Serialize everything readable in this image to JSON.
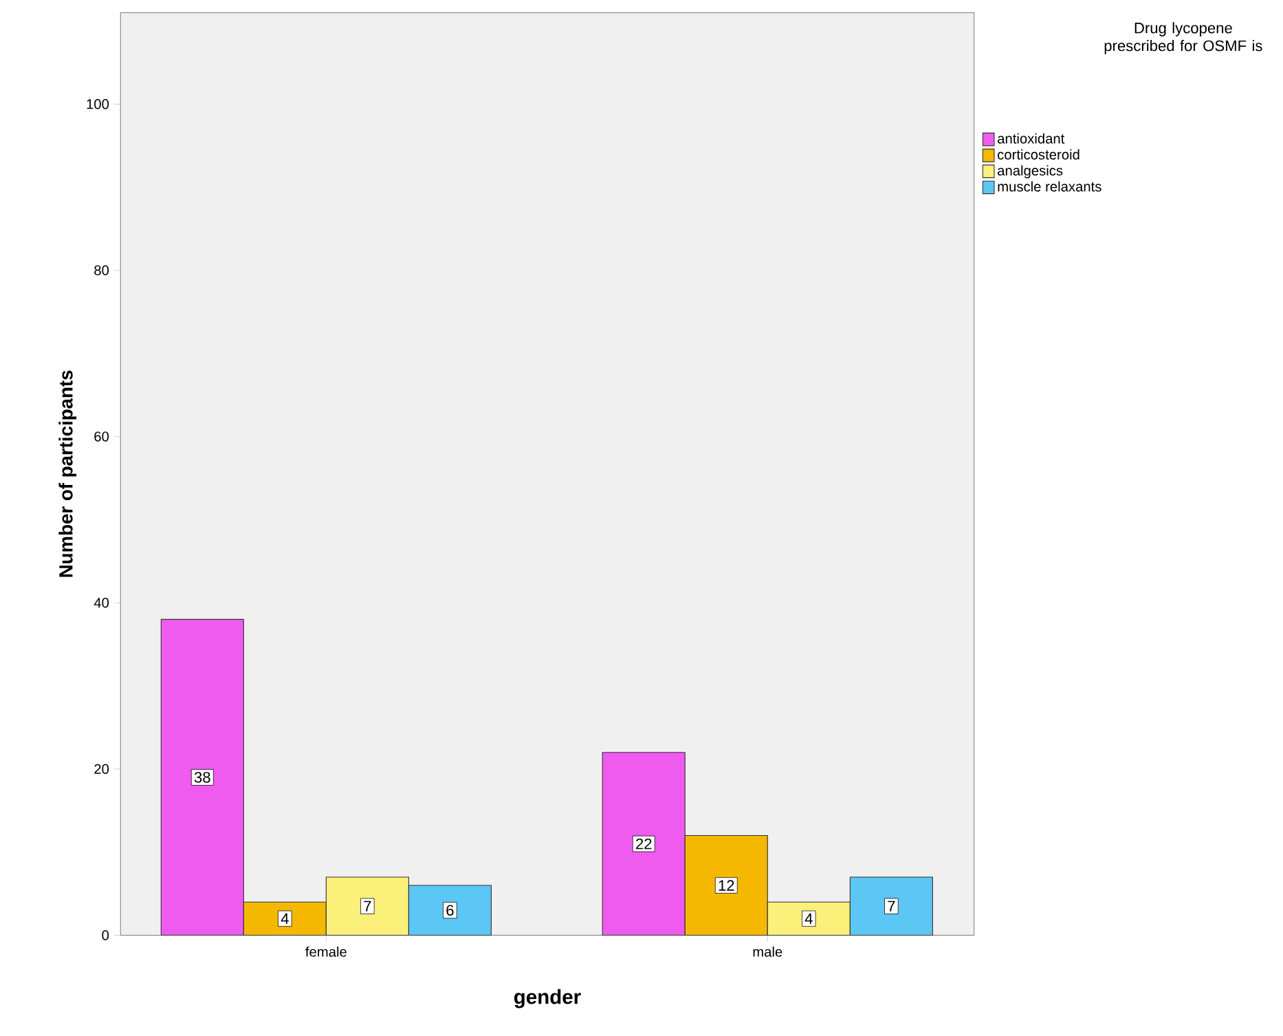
{
  "chart_data": {
    "type": "bar",
    "xlabel": "gender",
    "ylabel": "Number of participants",
    "legend_title": "Drug lycopene prescribed for OSMF is",
    "categories": [
      "female",
      "male"
    ],
    "series": [
      {
        "name": "antioxidant",
        "color": "#ef5bef",
        "values": [
          38,
          22
        ]
      },
      {
        "name": "corticosteroid",
        "color": "#f5b800",
        "values": [
          4,
          12
        ]
      },
      {
        "name": "analgesics",
        "color": "#faf07a",
        "values": [
          7,
          4
        ]
      },
      {
        "name": "muscle relaxants",
        "color": "#5cc6f5",
        "values": [
          6,
          7
        ]
      }
    ],
    "ylim": [
      0,
      111
    ],
    "yticks": [
      0,
      20,
      40,
      60,
      80,
      100
    ],
    "grid": false,
    "legend": "top right",
    "data_labels": true
  }
}
